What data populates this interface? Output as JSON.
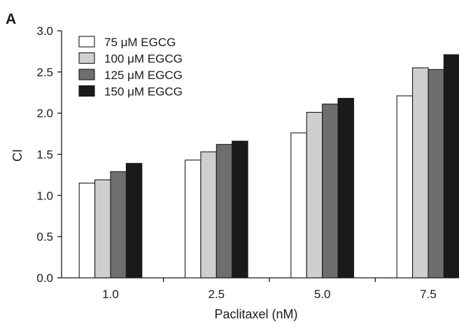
{
  "panel_label": "A",
  "chart_data": {
    "type": "bar",
    "categories": [
      "1.0",
      "2.5",
      "5.0",
      "7.5"
    ],
    "series": [
      {
        "name": "75 μM EGCG",
        "color": "#ffffff",
        "values": [
          1.15,
          1.43,
          1.76,
          2.21
        ]
      },
      {
        "name": "100 μM EGCG",
        "color": "#cfcfcf",
        "values": [
          1.19,
          1.53,
          2.01,
          2.55
        ]
      },
      {
        "name": "125 μM EGCG",
        "color": "#6e6e6e",
        "values": [
          1.29,
          1.62,
          2.11,
          2.53
        ]
      },
      {
        "name": "150 μM EGCG",
        "color": "#1a1a1a",
        "values": [
          1.39,
          1.66,
          2.18,
          2.71
        ]
      }
    ],
    "xlabel": "Paclitaxel (nM)",
    "ylabel": "CI",
    "ylim": [
      0,
      3.0
    ],
    "yticks": [
      "0.0",
      "0.5",
      "1.0",
      "1.5",
      "2.0",
      "2.5",
      "3.0"
    ],
    "legend_position": "top-left",
    "grid": false
  }
}
